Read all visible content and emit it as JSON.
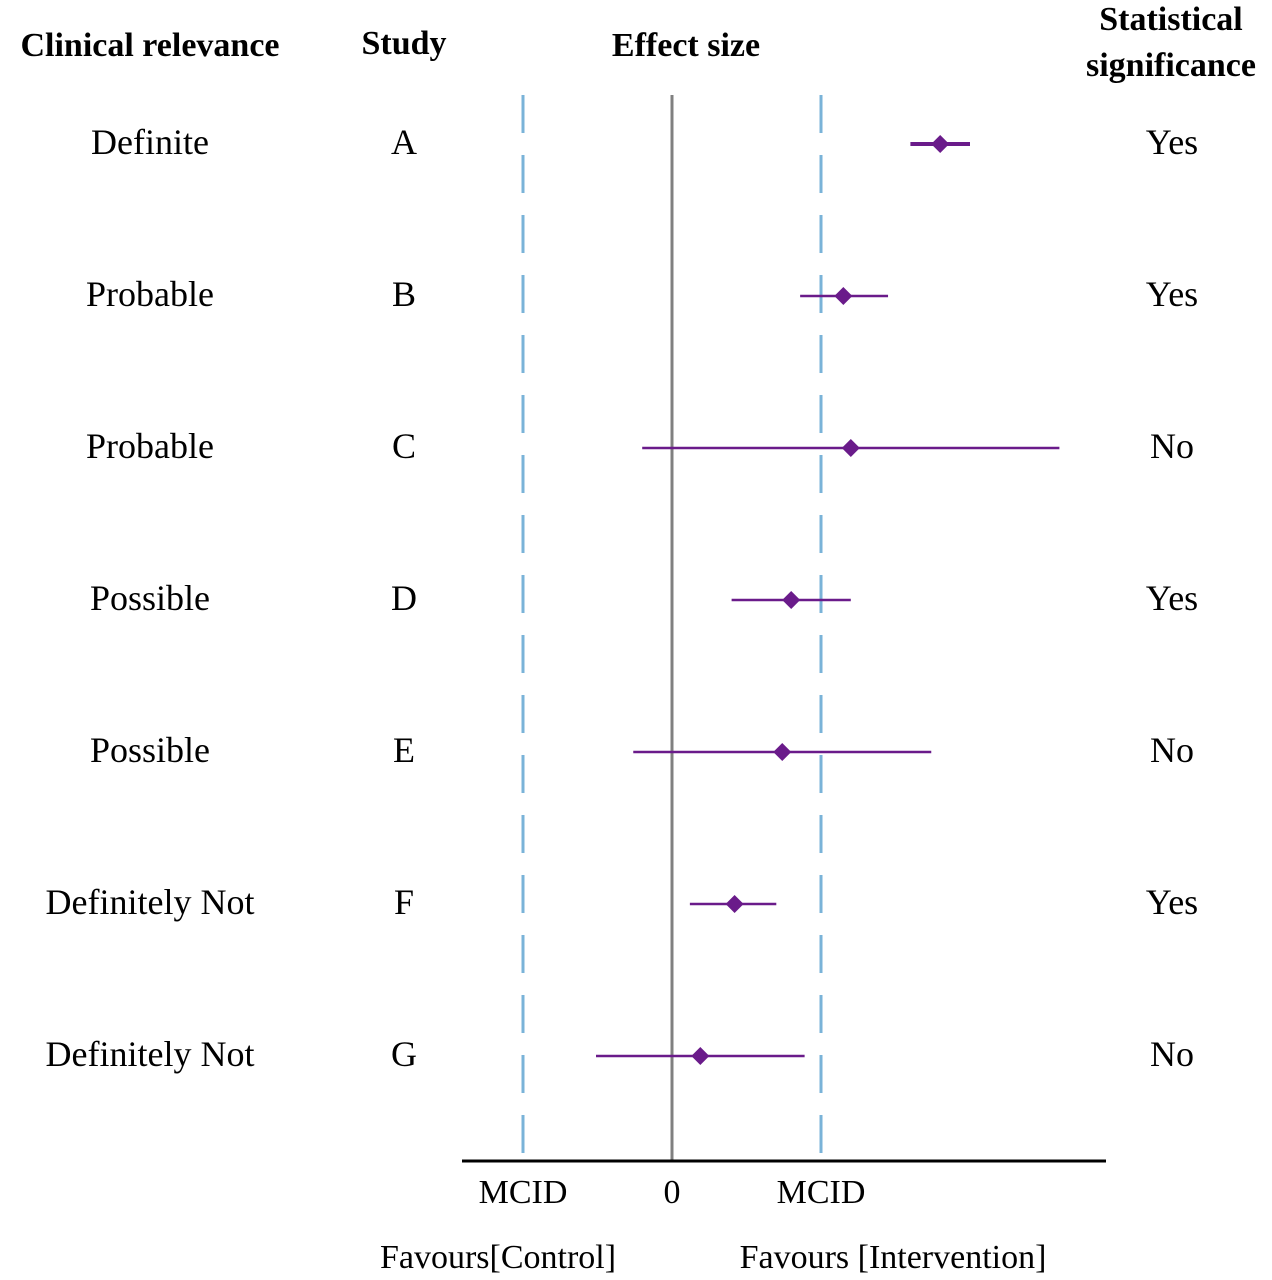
{
  "headers": {
    "clinical_relevance": "Clinical relevance",
    "study": "Study",
    "effect_size": "Effect size",
    "significance_line1": "Statistical",
    "significance_line2": "significance"
  },
  "axis": {
    "tick_left": "MCID",
    "tick_zero": "0",
    "tick_right": "MCID",
    "favours_left": "Favours[Control]",
    "favours_right": "Favours [Intervention]"
  },
  "colors": {
    "marker": "#6a1b8a",
    "mcid_line": "#7ab3d8",
    "zero_line": "#808080",
    "axis": "#000000"
  },
  "chart_data": {
    "type": "forest",
    "x_units": "MCID",
    "xlim": [
      -1.4,
      2.9
    ],
    "reference_lines": {
      "zero": 0,
      "mcid": [
        -1,
        1
      ]
    },
    "rows": [
      {
        "study": "A",
        "relevance": "Definite",
        "significance": "Yes",
        "estimate": 1.8,
        "ci": [
          1.6,
          2.0
        ]
      },
      {
        "study": "B",
        "relevance": "Probable",
        "significance": "Yes",
        "estimate": 1.15,
        "ci": [
          0.86,
          1.45
        ]
      },
      {
        "study": "C",
        "relevance": "Probable",
        "significance": "No",
        "estimate": 1.2,
        "ci": [
          -0.2,
          2.6
        ]
      },
      {
        "study": "D",
        "relevance": "Possible",
        "significance": "Yes",
        "estimate": 0.8,
        "ci": [
          0.4,
          1.2
        ]
      },
      {
        "study": "E",
        "relevance": "Possible",
        "significance": "No",
        "estimate": 0.74,
        "ci": [
          -0.26,
          1.74
        ]
      },
      {
        "study": "F",
        "relevance": "Definitely Not",
        "significance": "Yes",
        "estimate": 0.42,
        "ci": [
          0.12,
          0.7
        ]
      },
      {
        "study": "G",
        "relevance": "Definitely Not",
        "significance": "No",
        "estimate": 0.19,
        "ci": [
          -0.51,
          0.89
        ]
      }
    ]
  }
}
